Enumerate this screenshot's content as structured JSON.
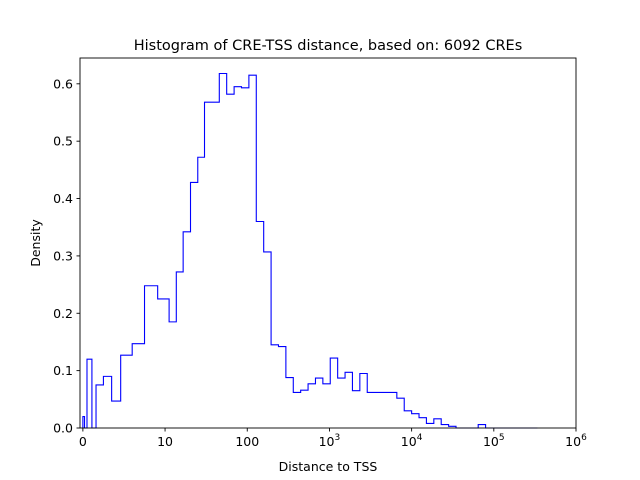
{
  "chart_data": {
    "type": "histogram",
    "title": "Histogram of CRE-TSS distance, based on: 6092 CREs",
    "xlabel": "Distance to TSS",
    "ylabel": "Density",
    "x_scale": "symlog",
    "xlim": [
      -0.35,
      1000000
    ],
    "ylim": [
      0,
      0.645
    ],
    "grid": false,
    "legend": "none",
    "color": "#0000ff",
    "x_ticks": [
      {
        "value": 0,
        "base": "0",
        "exp": ""
      },
      {
        "value": 10,
        "base": "10",
        "exp": ""
      },
      {
        "value": 100,
        "base": "100",
        "exp": ""
      },
      {
        "value": 1000,
        "base": "10",
        "exp": "3"
      },
      {
        "value": 10000,
        "base": "10",
        "exp": "4"
      },
      {
        "value": 100000,
        "base": "10",
        "exp": "5"
      },
      {
        "value": 1000000,
        "base": "10",
        "exp": "6"
      }
    ],
    "y_ticks": [
      {
        "value": 0.0,
        "label": "0.0"
      },
      {
        "value": 0.1,
        "label": "0.1"
      },
      {
        "value": 0.2,
        "label": "0.2"
      },
      {
        "value": 0.3,
        "label": "0.3"
      },
      {
        "value": 0.4,
        "label": "0.4"
      },
      {
        "value": 0.5,
        "label": "0.5"
      },
      {
        "value": 0.6,
        "label": "0.6"
      }
    ],
    "bin_edges": [
      0,
      0.2,
      0.5,
      1.1,
      1.6,
      2.5,
      3.5,
      4.6,
      6,
      7.5,
      9.1,
      11.2,
      13.7,
      16.6,
      20.4,
      25,
      30.2,
      37.2,
      45.7,
      56.2,
      69.2,
      85.1,
      104.7,
      128.8,
      158.5,
      195,
      239.9,
      295.1,
      363.1,
      446.7,
      549.5,
      676.1,
      831.8,
      1023,
      1259,
      1549,
      1905,
      2344,
      2884,
      3548,
      4365,
      5370,
      6607,
      8128,
      10000,
      12303,
      15136,
      18621,
      22909,
      28184,
      34674,
      42658,
      52481,
      64565,
      79433,
      97724,
      120226,
      147911,
      181970,
      223872,
      275423,
      338844
    ],
    "densities": [
      0.02,
      0.0,
      0.12,
      0.0,
      0.075,
      0.09,
      0.047,
      0.127,
      0.147,
      0.248,
      0.225,
      0.185,
      0.272,
      0.342,
      0.428,
      0.472,
      0.568,
      0.568,
      0.618,
      0.582,
      0.595,
      0.593,
      0.615,
      0.36,
      0.307,
      0.145,
      0.142,
      0.088,
      0.062,
      0.066,
      0.077,
      0.087,
      0.077,
      0.122,
      0.087,
      0.097,
      0.065,
      0.095,
      0.062,
      0.062,
      0.062,
      0.062,
      0.052,
      0.03,
      0.025,
      0.018,
      0.008,
      0.016,
      0.006,
      0.003,
      0.0,
      0.0,
      0.0,
      0.006,
      0.0,
      0.0,
      0.0,
      0.0,
      0.0,
      0.0,
      0.0
    ]
  }
}
